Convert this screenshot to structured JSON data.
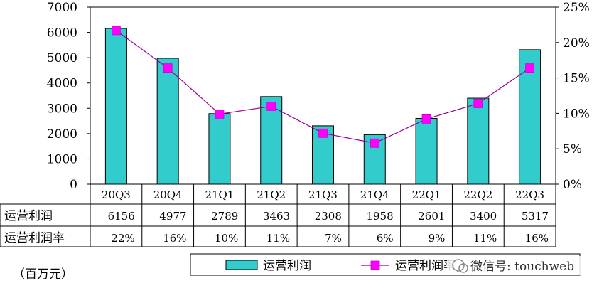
{
  "chart_data": {
    "type": "bar+line",
    "categories": [
      "20Q3",
      "20Q4",
      "21Q1",
      "21Q2",
      "21Q3",
      "21Q4",
      "22Q1",
      "22Q2",
      "22Q3"
    ],
    "series": [
      {
        "name": "运营利润",
        "type": "bar",
        "axis": "left",
        "color": "#33cccc",
        "values": [
          6156,
          4977,
          2789,
          3463,
          2308,
          1958,
          2601,
          3400,
          5317
        ]
      },
      {
        "name": "运营利润率",
        "type": "line",
        "axis": "right",
        "color": "#ff00ff",
        "line_color": "#990099",
        "values": [
          0.22,
          0.16,
          0.1,
          0.11,
          0.07,
          0.06,
          0.09,
          0.11,
          0.16
        ],
        "point_values": [
          0.217,
          0.164,
          0.099,
          0.11,
          0.072,
          0.058,
          0.092,
          0.114,
          0.164
        ]
      }
    ],
    "y_left": {
      "min": 0,
      "max": 7000,
      "ticks": [
        "0",
        "1000",
        "2000",
        "3000",
        "4000",
        "5000",
        "6000",
        "7000"
      ]
    },
    "y_right": {
      "min": 0,
      "max": 0.25,
      "ticks": [
        "0%",
        "5%",
        "10%",
        "15%",
        "20%",
        "25%"
      ]
    },
    "table": {
      "rows": [
        {
          "label": "运营利润",
          "cells": [
            "6156",
            "4977",
            "2789",
            "3463",
            "2308",
            "1958",
            "2601",
            "3400",
            "5317"
          ]
        },
        {
          "label": "运营利润率",
          "cells": [
            "22%",
            "16%",
            "10%",
            "11%",
            "7%",
            "6%",
            "9%",
            "11%",
            "16%"
          ]
        }
      ]
    },
    "legend": {
      "position": "bottom",
      "items": [
        {
          "label": "运营利润",
          "kind": "bar"
        },
        {
          "label": "运营利润率",
          "kind": "line"
        }
      ]
    },
    "unit_label": "（百万元）",
    "watermark": "微信号: touchweb",
    "grid": false
  }
}
